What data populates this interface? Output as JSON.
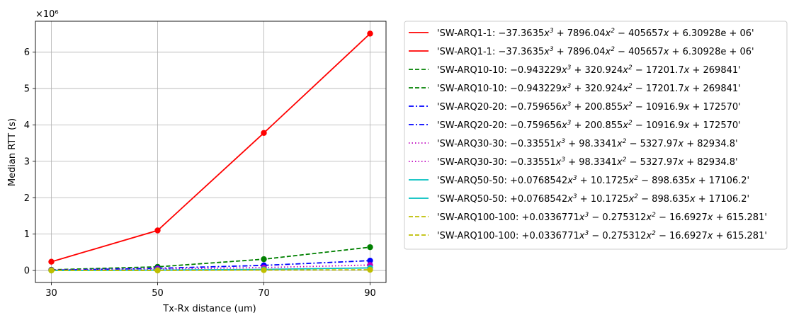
{
  "chart_data": {
    "type": "line",
    "xlabel": "Tx-Rx distance (um)",
    "ylabel": "Median RTT (s)",
    "y_scale_label": "×10⁶",
    "x": [
      30,
      50,
      70,
      90
    ],
    "x_ticks": [
      "30",
      "50",
      "70",
      "90"
    ],
    "y_ticks": [
      "0",
      "1",
      "2",
      "3",
      "4",
      "5",
      "6"
    ],
    "xlim": [
      27,
      93
    ],
    "ylim": [
      -0.33,
      6.85
    ],
    "grid": true,
    "legend_position": "outside-right",
    "series": [
      {
        "name": "SW-ARQ1-1",
        "color": "#ff0000",
        "dash": "solid",
        "values": [
          0.24,
          1.1,
          3.78,
          6.51
        ]
      },
      {
        "name": "SW-ARQ10-10",
        "color": "#008000",
        "dash": "dashed",
        "values": [
          0.02,
          0.1,
          0.31,
          0.64
        ]
      },
      {
        "name": "SW-ARQ20-20",
        "color": "#0000ff",
        "dash": "dashdot",
        "values": [
          0.01,
          0.06,
          0.14,
          0.27
        ]
      },
      {
        "name": "SW-ARQ30-30",
        "color": "#bf00bf",
        "dash": "dotted",
        "values": [
          0.01,
          0.04,
          0.08,
          0.15
        ]
      },
      {
        "name": "SW-ARQ50-50",
        "color": "#00bfbf",
        "dash": "solid",
        "values": [
          0.0,
          0.01,
          0.03,
          0.07
        ]
      },
      {
        "name": "SW-ARQ100-100",
        "color": "#bfbf00",
        "dash": "dashed",
        "values": [
          0.0,
          0.0,
          0.01,
          0.02
        ]
      }
    ],
    "legend_entries": [
      {
        "series": 0,
        "prefix": "'SW-ARQ1-1: ",
        "c3": "−37.3635",
        "c2": " + 7896.04",
        "c1": " − 405657",
        "c0": " + 6.30928e + 06'"
      },
      {
        "series": 0,
        "prefix": "'SW-ARQ1-1: ",
        "c3": "−37.3635",
        "c2": " + 7896.04",
        "c1": " − 405657",
        "c0": " + 6.30928e + 06'"
      },
      {
        "series": 1,
        "prefix": "'SW-ARQ10-10: ",
        "c3": "−0.943229",
        "c2": " + 320.924",
        "c1": " − 17201.7",
        "c0": " + 269841'"
      },
      {
        "series": 1,
        "prefix": "'SW-ARQ10-10: ",
        "c3": "−0.943229",
        "c2": " + 320.924",
        "c1": " − 17201.7",
        "c0": " + 269841'"
      },
      {
        "series": 2,
        "prefix": "'SW-ARQ20-20: ",
        "c3": "−0.759656",
        "c2": " + 200.855",
        "c1": " − 10916.9",
        "c0": " + 172570'"
      },
      {
        "series": 2,
        "prefix": "'SW-ARQ20-20: ",
        "c3": "−0.759656",
        "c2": " + 200.855",
        "c1": " − 10916.9",
        "c0": " + 172570'"
      },
      {
        "series": 3,
        "prefix": "'SW-ARQ30-30: ",
        "c3": "−0.33551",
        "c2": " + 98.3341",
        "c1": " − 5327.97",
        "c0": " + 82934.8'"
      },
      {
        "series": 3,
        "prefix": "'SW-ARQ30-30: ",
        "c3": "−0.33551",
        "c2": " + 98.3341",
        "c1": " − 5327.97",
        "c0": " + 82934.8'"
      },
      {
        "series": 4,
        "prefix": "'SW-ARQ50-50: ",
        "c3": "+0.0768542",
        "c2": " + 10.1725",
        "c1": " − 898.635",
        "c0": " + 17106.2'"
      },
      {
        "series": 4,
        "prefix": "'SW-ARQ50-50: ",
        "c3": "+0.0768542",
        "c2": " + 10.1725",
        "c1": " − 898.635",
        "c0": " + 17106.2'"
      },
      {
        "series": 5,
        "prefix": "'SW-ARQ100-100: ",
        "c3": "+0.0336771",
        "c2": " − 0.275312",
        "c1": " − 16.6927",
        "c0": " + 615.281'"
      },
      {
        "series": 5,
        "prefix": "'SW-ARQ100-100: ",
        "c3": "+0.0336771",
        "c2": " − 0.275312",
        "c1": " − 16.6927",
        "c0": " + 615.281'"
      }
    ]
  }
}
